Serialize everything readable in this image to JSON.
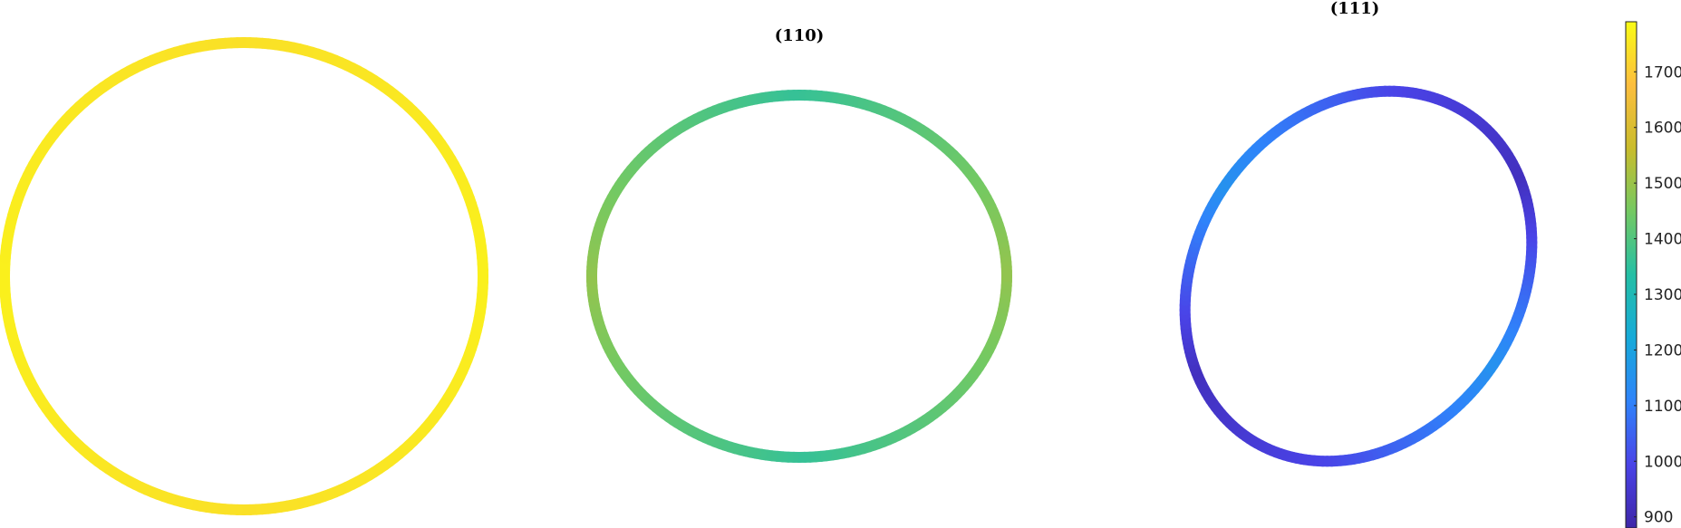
{
  "chart_data": {
    "type": "other",
    "description_of_marks": "three closed curves colored by value via shared colorbar",
    "colormap": "parula",
    "colormap_stops": [
      "#3e26a8",
      "#4a43e7",
      "#2f83fa",
      "#16aad9",
      "#24bfa5",
      "#74c962",
      "#c9bc2c",
      "#fcbe3e",
      "#f9fb15"
    ],
    "panels": [
      {
        "title": "",
        "curve": "circle",
        "values": [
          1770,
          1740,
          1770,
          1740
        ],
        "value_pattern": "nearly constant (about 1740 to 1770)"
      },
      {
        "title": "(110)",
        "curve": "ellipse",
        "values": [
          1490,
          1360,
          1490,
          1360
        ],
        "value_pattern": "about 1490 at left/right ends, about 1360 at top/bottom"
      },
      {
        "title": "(111)",
        "curve": "tilted ellipse",
        "values": [
          1150,
          1000,
          920,
          1150,
          1000,
          920
        ],
        "value_pattern": "about 920 to 1150, varying around the curve"
      }
    ],
    "colorbar": {
      "min": 880,
      "max": 1790,
      "ticks": [
        900,
        1000,
        1100,
        1200,
        1300,
        1400,
        1500,
        1600,
        1700
      ],
      "tick_labels": [
        "900",
        "1000",
        "1100",
        "1200",
        "1300",
        "1400",
        "1500",
        "1600",
        "1700"
      ]
    }
  }
}
